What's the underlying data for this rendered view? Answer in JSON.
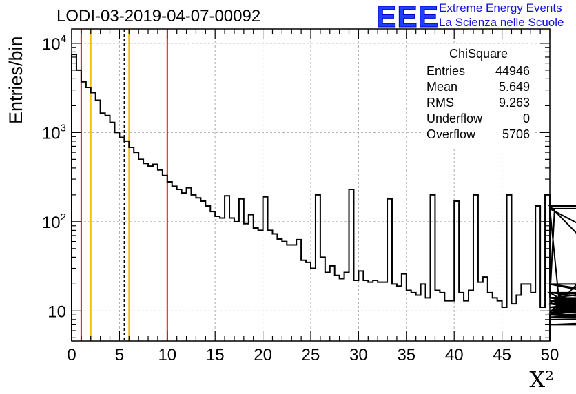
{
  "title": "LODI-03-2019-04-07-00092",
  "logo": {
    "mark": "EEE",
    "line1": "Extreme Energy Events",
    "line2": "La Scienza nelle Scuole"
  },
  "stats": {
    "title": "ChiSquare",
    "rows": [
      {
        "key": "Entries",
        "value": "44946"
      },
      {
        "key": "Mean",
        "value": "5.649"
      },
      {
        "key": "RMS",
        "value": "9.263"
      },
      {
        "key": "Underflow",
        "value": "0"
      },
      {
        "key": "Overflow",
        "value": "5706"
      }
    ]
  },
  "colors": {
    "red": "#e01010",
    "yellow": "#f0c000",
    "dashed": "#000000"
  },
  "chart_data": {
    "type": "step-histogram",
    "xlabel": "X²",
    "ylabel": "Entries/bin",
    "xlim": [
      0,
      50
    ],
    "ylim": [
      4.6,
      14500
    ],
    "yscale": "log",
    "grid": true,
    "x_ticks": [
      0,
      5,
      10,
      15,
      20,
      25,
      30,
      35,
      40,
      45,
      50
    ],
    "x_tick_labels": [
      "0",
      "5",
      "10",
      "15",
      "20",
      "25",
      "30",
      "35",
      "40",
      "45",
      "50"
    ],
    "y_ticks": [
      10,
      100,
      1000,
      10000
    ],
    "y_tick_labels": [
      {
        "base": "10",
        "exp": ""
      },
      {
        "base": "10",
        "exp": "2"
      },
      {
        "base": "10",
        "exp": "3"
      },
      {
        "base": "10",
        "exp": "4"
      }
    ],
    "bin_width": 0.5,
    "counts": [
      7500,
      5000,
      3700,
      3200,
      2800,
      2300,
      1650,
      1550,
      1300,
      1000,
      880,
      800,
      680,
      600,
      500,
      450,
      420,
      440,
      380,
      330,
      280,
      250,
      230,
      210,
      240,
      200,
      185,
      170,
      150,
      130,
      115,
      110,
      195,
      110,
      100,
      180,
      95,
      120,
      85,
      80,
      190,
      80,
      73,
      64,
      60,
      55,
      55,
      63,
      37,
      35,
      30,
      200,
      40,
      27,
      32,
      25,
      23,
      27,
      230,
      22,
      28,
      22,
      21,
      22,
      21,
      21,
      180,
      20,
      19,
      26,
      17,
      16,
      15,
      20,
      14,
      200,
      17,
      16,
      13,
      13,
      170,
      16,
      13,
      17,
      200,
      21,
      24,
      16,
      14,
      13,
      11,
      200,
      12,
      15,
      20,
      20,
      16,
      150,
      11,
      200,
      14,
      140,
      12,
      16,
      12,
      11,
      12,
      13,
      9.5,
      10,
      9,
      11,
      10,
      16,
      13,
      12,
      10,
      14,
      9.5,
      12,
      9.5,
      150,
      9.5,
      10,
      13,
      16,
      14,
      20,
      10,
      8.5,
      11,
      12,
      14,
      10,
      13,
      12,
      9.5,
      13,
      14,
      12,
      9,
      140,
      9,
      9.5,
      10,
      9,
      8.5,
      9,
      7,
      9,
      20,
      8,
      9
    ],
    "vertical_lines": [
      {
        "x": 1.0,
        "style": "red"
      },
      {
        "x": 2.0,
        "style": "yellow"
      },
      {
        "x": 5.5,
        "style": "dashed"
      },
      {
        "x": 6.0,
        "style": "yellow"
      },
      {
        "x": 10.0,
        "style": "red"
      }
    ]
  }
}
